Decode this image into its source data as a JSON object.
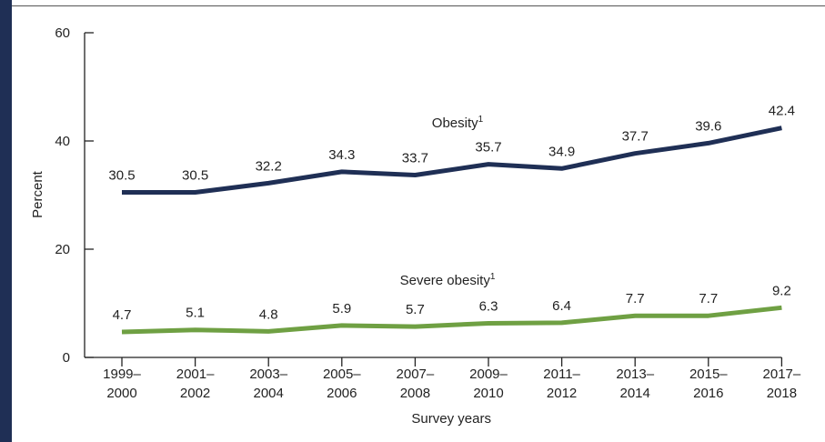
{
  "chart_data": {
    "type": "line",
    "title": "",
    "xlabel": "Survey years",
    "ylabel": "Percent",
    "ylim": [
      0,
      60
    ],
    "yticks": [
      "0",
      "20",
      "40",
      "60"
    ],
    "categories": [
      [
        "1999–",
        "2000"
      ],
      [
        "2001–",
        "2002"
      ],
      [
        "2003–",
        "2004"
      ],
      [
        "2005–",
        "2006"
      ],
      [
        "2007–",
        "2008"
      ],
      [
        "2009–",
        "2010"
      ],
      [
        "2011–",
        "2012"
      ],
      [
        "2013–",
        "2014"
      ],
      [
        "2015–",
        "2016"
      ],
      [
        "2017–",
        "2018"
      ]
    ],
    "series": [
      {
        "name": "Obesity",
        "superscript": "1",
        "color": "#1f2f55",
        "values": [
          30.5,
          30.5,
          32.2,
          34.3,
          33.7,
          35.7,
          34.9,
          37.7,
          39.6,
          42.4
        ],
        "labels": [
          "30.5",
          "30.5",
          "32.2",
          "34.3",
          "33.7",
          "35.7",
          "34.9",
          "37.7",
          "39.6",
          "42.4"
        ]
      },
      {
        "name": "Severe obesity",
        "superscript": "1",
        "color": "#6fa043",
        "values": [
          4.7,
          5.1,
          4.8,
          5.9,
          5.7,
          6.3,
          6.4,
          7.7,
          7.7,
          9.2
        ],
        "labels": [
          "4.7",
          "5.1",
          "4.8",
          "5.9",
          "5.7",
          "6.3",
          "6.4",
          "7.7",
          "7.7",
          "9.2"
        ]
      }
    ],
    "grid": false,
    "legend": "inline"
  }
}
